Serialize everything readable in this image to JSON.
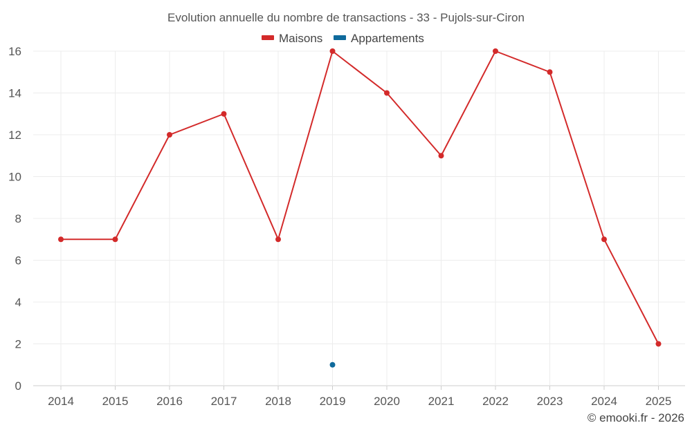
{
  "chart_data": {
    "type": "line",
    "title": "Evolution annuelle du nombre de transactions - 33 - Pujols-sur-Ciron",
    "categories": [
      "2014",
      "2015",
      "2016",
      "2017",
      "2018",
      "2019",
      "2020",
      "2021",
      "2022",
      "2023",
      "2024",
      "2025"
    ],
    "yticks": [
      "0",
      "2",
      "4",
      "6",
      "8",
      "10",
      "12",
      "14",
      "16"
    ],
    "ylim": [
      0,
      16
    ],
    "xlabel": "",
    "ylabel": "",
    "grid": true,
    "legend_position": "top-center",
    "series": [
      {
        "name": "Maisons",
        "color": "#d32a2a",
        "values": [
          7,
          7,
          12,
          13,
          7,
          16,
          14,
          11,
          16,
          15,
          7,
          2
        ]
      },
      {
        "name": "Appartements",
        "color": "#0f6a9c",
        "values": [
          null,
          null,
          null,
          null,
          null,
          1,
          null,
          null,
          null,
          null,
          null,
          null
        ]
      }
    ],
    "credit": "© emooki.fr - 2026"
  }
}
